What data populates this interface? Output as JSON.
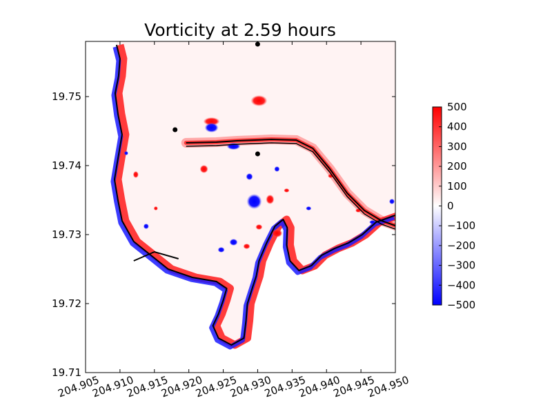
{
  "chart_data": {
    "type": "heatmap",
    "title": "Vorticity at 2.59 hours",
    "xlabel": "",
    "ylabel": "",
    "xlim": [
      204.905,
      204.95
    ],
    "ylim": [
      19.71,
      19.758
    ],
    "x_ticks": [
      "204.905",
      "204.910",
      "204.915",
      "204.920",
      "204.925",
      "204.930",
      "204.935",
      "204.940",
      "204.945",
      "204.950"
    ],
    "x_tick_values": [
      204.905,
      204.91,
      204.915,
      204.92,
      204.925,
      204.93,
      204.935,
      204.94,
      204.945,
      204.95
    ],
    "y_ticks": [
      "19.71",
      "19.72",
      "19.73",
      "19.74",
      "19.75"
    ],
    "y_tick_values": [
      19.71,
      19.72,
      19.73,
      19.74,
      19.75
    ],
    "grid": false,
    "colorbar": {
      "colormap": "bwr",
      "vmin": -500,
      "vmax": 500,
      "ticks": [
        "500",
        "400",
        "300",
        "200",
        "100",
        "0",
        "−100",
        "−200",
        "−300",
        "−400",
        "−500"
      ],
      "tick_values": [
        500,
        400,
        300,
        200,
        100,
        0,
        -100,
        -200,
        -300,
        -400,
        -500
      ],
      "colors": {
        "min": "#0000ff",
        "mid": "#ffffff",
        "max": "#ff0000"
      }
    },
    "markers": [
      {
        "x": 204.918,
        "y": 19.7452
      },
      {
        "x": 204.93,
        "y": 19.7417
      },
      {
        "x": 204.93,
        "y": 19.7576
      }
    ],
    "eddies": [
      {
        "x": 204.9233,
        "y": 19.7464,
        "rx": 0.0012,
        "ry": 0.0006,
        "sign": 1
      },
      {
        "x": 204.9233,
        "y": 19.7455,
        "rx": 0.001,
        "ry": 0.0007,
        "sign": -1
      },
      {
        "x": 204.9302,
        "y": 19.7494,
        "rx": 0.0012,
        "ry": 0.0008,
        "sign": 1
      },
      {
        "x": 204.9265,
        "y": 19.7428,
        "rx": 0.001,
        "ry": 0.0005,
        "sign": -1
      },
      {
        "x": 204.9222,
        "y": 19.7395,
        "rx": 0.0006,
        "ry": 0.0006,
        "sign": 1
      },
      {
        "x": 204.9295,
        "y": 19.7348,
        "rx": 0.0011,
        "ry": 0.0011,
        "sign": -1
      },
      {
        "x": 204.9318,
        "y": 19.7351,
        "rx": 0.0006,
        "ry": 0.0007,
        "sign": 1
      },
      {
        "x": 204.9288,
        "y": 19.7384,
        "rx": 0.0005,
        "ry": 0.0005,
        "sign": -1
      },
      {
        "x": 204.9328,
        "y": 19.7302,
        "rx": 0.0008,
        "ry": 0.0006,
        "sign": 1
      },
      {
        "x": 204.9302,
        "y": 19.7311,
        "rx": 0.0005,
        "ry": 0.0004,
        "sign": 1
      },
      {
        "x": 204.9265,
        "y": 19.7289,
        "rx": 0.0006,
        "ry": 0.0005,
        "sign": -1
      },
      {
        "x": 204.9284,
        "y": 19.7283,
        "rx": 0.0005,
        "ry": 0.0004,
        "sign": 1
      },
      {
        "x": 204.9247,
        "y": 19.7278,
        "rx": 0.0005,
        "ry": 0.0004,
        "sign": -1
      },
      {
        "x": 204.9328,
        "y": 19.7395,
        "rx": 0.0004,
        "ry": 0.0004,
        "sign": -1
      },
      {
        "x": 204.9342,
        "y": 19.7364,
        "rx": 0.0004,
        "ry": 0.0003,
        "sign": 1
      },
      {
        "x": 204.9374,
        "y": 19.7338,
        "rx": 0.0004,
        "ry": 0.0003,
        "sign": -1
      },
      {
        "x": 204.9406,
        "y": 19.7385,
        "rx": 0.0004,
        "ry": 0.0003,
        "sign": 1
      },
      {
        "x": 204.9123,
        "y": 19.7387,
        "rx": 0.0004,
        "ry": 0.0005,
        "sign": 1
      },
      {
        "x": 204.9109,
        "y": 19.7418,
        "rx": 0.0003,
        "ry": 0.0003,
        "sign": -1
      },
      {
        "x": 204.9138,
        "y": 19.7312,
        "rx": 0.0004,
        "ry": 0.0004,
        "sign": -1
      },
      {
        "x": 204.9152,
        "y": 19.7338,
        "rx": 0.0003,
        "ry": 0.0003,
        "sign": 1
      },
      {
        "x": 204.9467,
        "y": 19.7318,
        "rx": 0.0005,
        "ry": 0.0003,
        "sign": -1
      },
      {
        "x": 204.9495,
        "y": 19.7348,
        "rx": 0.0004,
        "ry": 0.0004,
        "sign": -1
      },
      {
        "x": 204.9446,
        "y": 19.7335,
        "rx": 0.0004,
        "ry": 0.0003,
        "sign": 1
      }
    ],
    "coastline": [
      [
        204.9095,
        19.7575
      ],
      [
        204.91,
        19.7555
      ],
      [
        204.9098,
        19.753
      ],
      [
        204.9093,
        19.7505
      ],
      [
        204.9097,
        19.7475
      ],
      [
        204.9103,
        19.7445
      ],
      [
        204.9097,
        19.741
      ],
      [
        204.9092,
        19.738
      ],
      [
        204.9097,
        19.735
      ],
      [
        204.9103,
        19.732
      ],
      [
        204.912,
        19.729
      ],
      [
        204.9145,
        19.727
      ],
      [
        204.917,
        19.725
      ],
      [
        204.9205,
        19.7238
      ],
      [
        204.924,
        19.7232
      ],
      [
        204.9255,
        19.7222
      ],
      [
        204.925,
        19.7205
      ],
      [
        204.9243,
        19.7185
      ],
      [
        204.9235,
        19.7168
      ],
      [
        204.9243,
        19.715
      ],
      [
        204.9262,
        19.714
      ],
      [
        204.928,
        19.715
      ],
      [
        204.9283,
        19.7175
      ],
      [
        204.9285,
        19.72
      ],
      [
        204.9292,
        19.7222
      ],
      [
        204.9298,
        19.724
      ],
      [
        204.9302,
        19.7262
      ],
      [
        204.9313,
        19.7288
      ],
      [
        204.9325,
        19.7312
      ],
      [
        204.9337,
        19.7322
      ],
      [
        204.9343,
        19.731
      ],
      [
        204.9342,
        19.7285
      ],
      [
        204.9347,
        19.7262
      ],
      [
        204.936,
        19.7248
      ],
      [
        204.9378,
        19.7255
      ],
      [
        204.9393,
        19.727
      ],
      [
        204.9412,
        19.728
      ],
      [
        204.9432,
        19.7288
      ],
      [
        204.9452,
        19.73
      ],
      [
        204.9472,
        19.7318
      ],
      [
        204.95,
        19.7328
      ]
    ],
    "breakwater": [
      [
        204.9196,
        19.7433
      ],
      [
        204.924,
        19.7434
      ],
      [
        204.927,
        19.7436
      ],
      [
        204.932,
        19.7438
      ],
      [
        204.9356,
        19.7437
      ],
      [
        204.938,
        19.7425
      ],
      [
        204.9405,
        19.7395
      ],
      [
        204.943,
        19.736
      ],
      [
        204.9455,
        19.7335
      ],
      [
        204.948,
        19.732
      ],
      [
        204.95,
        19.7313
      ]
    ],
    "pier": [
      [
        204.912,
        19.7262
      ],
      [
        204.915,
        19.7275
      ],
      [
        204.9185,
        19.7265
      ]
    ]
  }
}
